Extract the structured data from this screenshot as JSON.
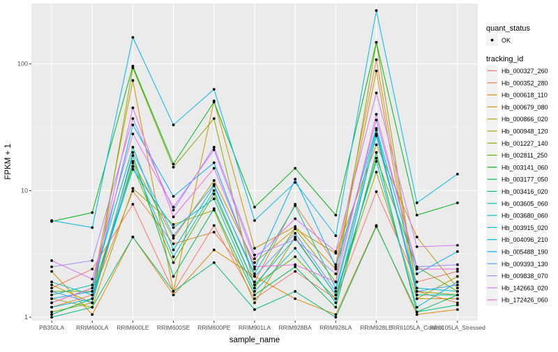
{
  "chart_data": {
    "type": "line",
    "xlabel": "sample_name",
    "ylabel": "FPKM + 1",
    "y_scale": "log10",
    "ylim": [
      0.94,
      300
    ],
    "y_ticks": [
      {
        "value": 1,
        "label": "1"
      },
      {
        "value": 10,
        "label": "10"
      },
      {
        "value": 100,
        "label": "100"
      }
    ],
    "categories": [
      "PB350LA",
      "RRIM600LA",
      "RRIM600LE",
      "RRIM600SE",
      "RRIM600PE",
      "RRIM901LA",
      "RRIM928BA",
      "RRIM928LA",
      "RRIM928LE",
      "RRII105LA_Control",
      "RRII105LA_Stressed"
    ],
    "grid": true,
    "legend_placement": "right",
    "point_legend": {
      "title": "quant_status",
      "label": "OK"
    },
    "color_legend_title": "tracking_id",
    "series": [
      {
        "name": "Hb_000327_260",
        "color": "#F8766D",
        "values": [
          1.7,
          2.4,
          7.8,
          1.6,
          5.3,
          1.4,
          2.3,
          1.4,
          9.8,
          1.9,
          2.3
        ]
      },
      {
        "name": "Hb_000352_280",
        "color": "#EE8043",
        "values": [
          1.2,
          1.5,
          9.9,
          3.8,
          4.7,
          1.9,
          7.8,
          2.6,
          108,
          1.6,
          1.3
        ]
      },
      {
        "name": "Hb_000618_110",
        "color": "#E18A00",
        "values": [
          2.3,
          1.05,
          4.3,
          1.5,
          3.4,
          2.1,
          1.4,
          1.05,
          5.3,
          1.05,
          1.15
        ]
      },
      {
        "name": "Hb_000679_080",
        "color": "#D09400",
        "values": [
          1.3,
          1.7,
          74,
          1.6,
          51,
          3.5,
          5.2,
          2.4,
          88,
          1.4,
          1.4
        ]
      },
      {
        "name": "Hb_000866_020",
        "color": "#BE9C00",
        "values": [
          1.8,
          1.3,
          17,
          4.2,
          12,
          2.7,
          5.0,
          3.2,
          23,
          4.3,
          1.7
        ]
      },
      {
        "name": "Hb_000948_120",
        "color": "#A5A400",
        "values": [
          1.4,
          1.2,
          10.4,
          5.4,
          7.0,
          1.3,
          4.3,
          1.5,
          14,
          1.4,
          2.1
        ]
      },
      {
        "name": "Hb_001227_140",
        "color": "#8AAB00",
        "values": [
          1.1,
          1.3,
          93,
          15.3,
          37,
          1.7,
          5.0,
          1.9,
          148,
          1.6,
          1.5
        ]
      },
      {
        "name": "Hb_002811_250",
        "color": "#64B200",
        "values": [
          1.6,
          1.6,
          15.5,
          2.7,
          9.4,
          1.8,
          3.0,
          1.4,
          18,
          2.5,
          1.6
        ]
      },
      {
        "name": "Hb_003141_060",
        "color": "#00B813",
        "values": [
          5.7,
          6.7,
          96,
          16.2,
          50,
          7.4,
          15.0,
          6.4,
          148,
          6.4,
          8.0
        ]
      },
      {
        "name": "Hb_003177_050",
        "color": "#00BC56",
        "values": [
          1.05,
          1.4,
          18.9,
          2.1,
          7.2,
          1.5,
          2.5,
          1.2,
          20,
          1.1,
          1.5
        ]
      },
      {
        "name": "Hb_003416_020",
        "color": "#00BF7D",
        "values": [
          1.0,
          1.2,
          4.3,
          1.6,
          2.7,
          1.15,
          1.6,
          1.0,
          5.2,
          1.1,
          1.25
        ]
      },
      {
        "name": "Hb_003605_060",
        "color": "#00C19F",
        "values": [
          1.5,
          1.8,
          22,
          3.4,
          10.9,
          2.2,
          7.6,
          1.7,
          30,
          1.5,
          1.5
        ]
      },
      {
        "name": "Hb_003680_060",
        "color": "#00C0BE",
        "values": [
          1.9,
          1.5,
          14.7,
          5.1,
          8.6,
          1.6,
          3.5,
          1.3,
          28,
          1.7,
          1.6
        ]
      },
      {
        "name": "Hb_003915_020",
        "color": "#00BDD8",
        "values": [
          1.2,
          1.4,
          16.5,
          3.0,
          10.0,
          1.8,
          4.2,
          1.5,
          17,
          1.2,
          1.9
        ]
      },
      {
        "name": "Hb_004096_210",
        "color": "#00B7EE",
        "values": [
          5.8,
          5.1,
          162,
          33,
          63,
          5.8,
          11.6,
          4.4,
          264,
          8.0,
          13.5
        ]
      },
      {
        "name": "Hb_005488_190",
        "color": "#00ADFA",
        "values": [
          1.4,
          1.6,
          33,
          9.0,
          16.6,
          2.4,
          12.3,
          2.5,
          31,
          2.2,
          3.3
        ]
      },
      {
        "name": "Hb_009393_130",
        "color": "#4AA2FF",
        "values": [
          1.6,
          1.3,
          20,
          4.4,
          11.2,
          2.1,
          4.6,
          1.6,
          27,
          1.6,
          1.8
        ]
      },
      {
        "name": "Hb_009838_070",
        "color": "#A58AFF",
        "values": [
          2.5,
          2.8,
          37,
          7.0,
          22,
          3.1,
          4.1,
          2.2,
          36,
          2.5,
          2.6
        ]
      },
      {
        "name": "Hb_142663_020",
        "color": "#D673FF",
        "values": [
          2.8,
          2.0,
          28,
          7.4,
          21,
          2.9,
          6.0,
          3.3,
          59,
          3.6,
          3.7
        ]
      },
      {
        "name": "Hb_172426_060",
        "color": "#F066E3",
        "values": [
          1.3,
          1.7,
          45,
          6.2,
          15,
          2.5,
          2.6,
          1.9,
          40,
          2.4,
          2.4
        ]
      }
    ]
  }
}
